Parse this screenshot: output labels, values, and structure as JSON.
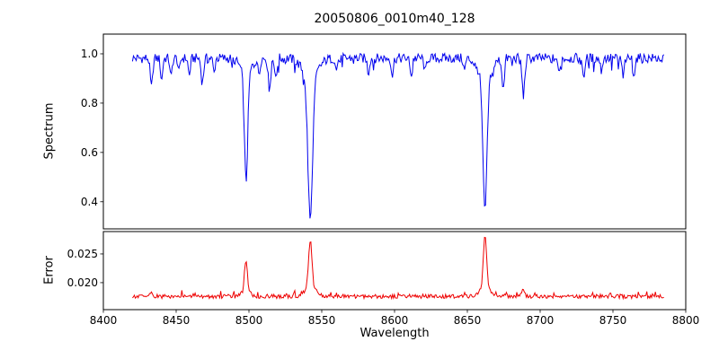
{
  "chart_data": {
    "type": "line",
    "title": "20050806_0010m40_128",
    "xlabel": "Wavelength",
    "legend": "none",
    "grid": false,
    "x_axis_range": [
      8400,
      8800
    ],
    "x_data_range": [
      8420,
      8785
    ],
    "x_ticks": [
      8400,
      8450,
      8500,
      8550,
      8600,
      8650,
      8700,
      8750,
      8800
    ],
    "x_tick_labels": [
      "8400",
      "8450",
      "8500",
      "8550",
      "8600",
      "8650",
      "8700",
      "8750",
      "8800"
    ],
    "panels": [
      {
        "ylabel": "Spectrum",
        "color": "#0000ee",
        "ylim": [
          0.29,
          1.08
        ],
        "yticks": [
          0.4,
          0.6,
          0.8,
          1.0
        ],
        "ytick_labels": [
          "0.4",
          "0.6",
          "0.8",
          "1.0"
        ],
        "continuum": 0.982,
        "noise_band": 0.04,
        "spike_depth": 0.055,
        "absorption_lines": [
          {
            "c": 8433.0,
            "d": 0.12,
            "w": 1.2
          },
          {
            "c": 8440.0,
            "d": 0.09,
            "w": 1.0
          },
          {
            "c": 8446.5,
            "d": 0.08,
            "w": 1.0
          },
          {
            "c": 8452.0,
            "d": 0.06,
            "w": 0.9
          },
          {
            "c": 8459.0,
            "d": 0.07,
            "w": 1.0
          },
          {
            "c": 8468.0,
            "d": 0.1,
            "w": 1.2
          },
          {
            "c": 8476.0,
            "d": 0.06,
            "w": 0.9
          },
          {
            "c": 8498.0,
            "d": 0.435,
            "w": 1.6
          },
          {
            "c": 8507.0,
            "d": 0.06,
            "w": 0.9
          },
          {
            "c": 8514.0,
            "d": 0.12,
            "w": 1.2
          },
          {
            "c": 8518.5,
            "d": 0.09,
            "w": 1.0
          },
          {
            "c": 8542.1,
            "d": 0.57,
            "w": 2.2
          },
          {
            "c": 8560.0,
            "d": 0.05,
            "w": 0.9
          },
          {
            "c": 8582.0,
            "d": 0.06,
            "w": 1.0
          },
          {
            "c": 8598.5,
            "d": 0.07,
            "w": 1.0
          },
          {
            "c": 8611.0,
            "d": 0.05,
            "w": 1.0
          },
          {
            "c": 8621.0,
            "d": 0.06,
            "w": 1.0
          },
          {
            "c": 8648.0,
            "d": 0.05,
            "w": 1.0
          },
          {
            "c": 8662.1,
            "d": 0.535,
            "w": 2.0
          },
          {
            "c": 8674.5,
            "d": 0.11,
            "w": 1.1
          },
          {
            "c": 8688.5,
            "d": 0.15,
            "w": 1.3
          },
          {
            "c": 8713.0,
            "d": 0.06,
            "w": 1.0
          },
          {
            "c": 8730.0,
            "d": 0.07,
            "w": 1.0
          },
          {
            "c": 8742.0,
            "d": 0.05,
            "w": 1.0
          },
          {
            "c": 8757.0,
            "d": 0.08,
            "w": 1.0
          },
          {
            "c": 8764.5,
            "d": 0.06,
            "w": 1.0
          }
        ]
      },
      {
        "ylabel": "Error",
        "color": "#ee0000",
        "ylim": [
          0.0153,
          0.0289
        ],
        "yticks": [
          0.02,
          0.025
        ],
        "ytick_labels": [
          "0.020",
          "0.025"
        ],
        "baseline": 0.0176,
        "noise_band": 0.0007,
        "spike_height": 0.0009,
        "peaks": [
          {
            "c": 8433.0,
            "h": 0.0007,
            "w": 1.0
          },
          {
            "c": 8498.0,
            "h": 0.005,
            "w": 1.3
          },
          {
            "c": 8542.1,
            "h": 0.0081,
            "w": 1.6
          },
          {
            "c": 8662.1,
            "h": 0.0089,
            "w": 1.5
          },
          {
            "c": 8688.5,
            "h": 0.001,
            "w": 1.1
          }
        ]
      }
    ],
    "features": {
      "spectrum_absorption_minima": [
        {
          "wavelength": 8498,
          "flux": 0.48
        },
        {
          "wavelength": 8542,
          "flux": 0.33
        },
        {
          "wavelength": 8662,
          "flux": 0.37
        }
      ],
      "error_peaks": [
        {
          "wavelength": 8498,
          "value": 0.0235
        },
        {
          "wavelength": 8542,
          "value": 0.0275
        },
        {
          "wavelength": 8662,
          "value": 0.0285
        }
      ],
      "continuum_level": 0.98,
      "error_baseline": 0.018
    }
  }
}
